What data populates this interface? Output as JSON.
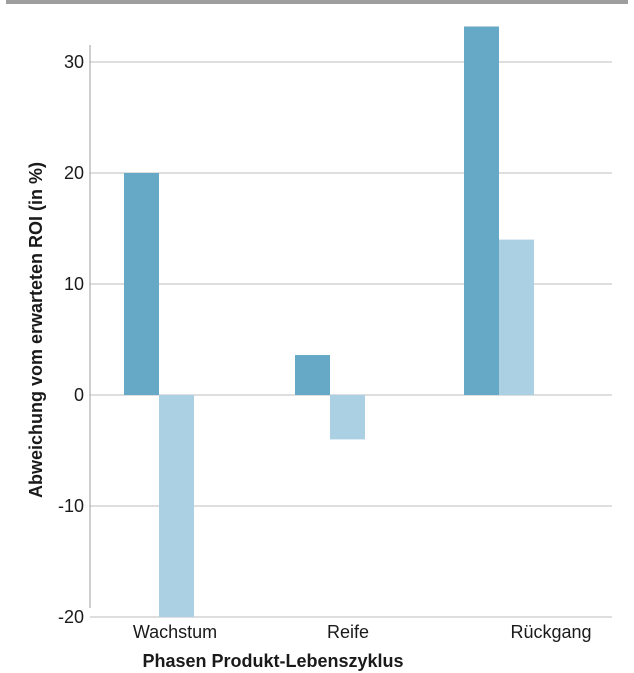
{
  "chart_data": {
    "type": "bar",
    "title": "",
    "xlabel": "Phasen Produkt-Lebenszyklus",
    "ylabel": "Abweichung vom erwarteten ROI (in %)",
    "categories": [
      "Wachstum",
      "Reife",
      "Rückgang"
    ],
    "series": [
      {
        "values": [
          20,
          3.6,
          33.2
        ]
      },
      {
        "values": [
          -20,
          -4,
          14
        ]
      }
    ],
    "ylim": [
      -20,
      32
    ],
    "yticks": [
      -20,
      -10,
      0,
      10,
      20,
      30
    ],
    "grid": true,
    "colors": {
      "series_dark": "#66a9c7",
      "series_light": "#abd0e3",
      "gridline": "#bdbdbd",
      "axis": "#9e9e9e",
      "top_rule": "#9e9e9e"
    }
  }
}
